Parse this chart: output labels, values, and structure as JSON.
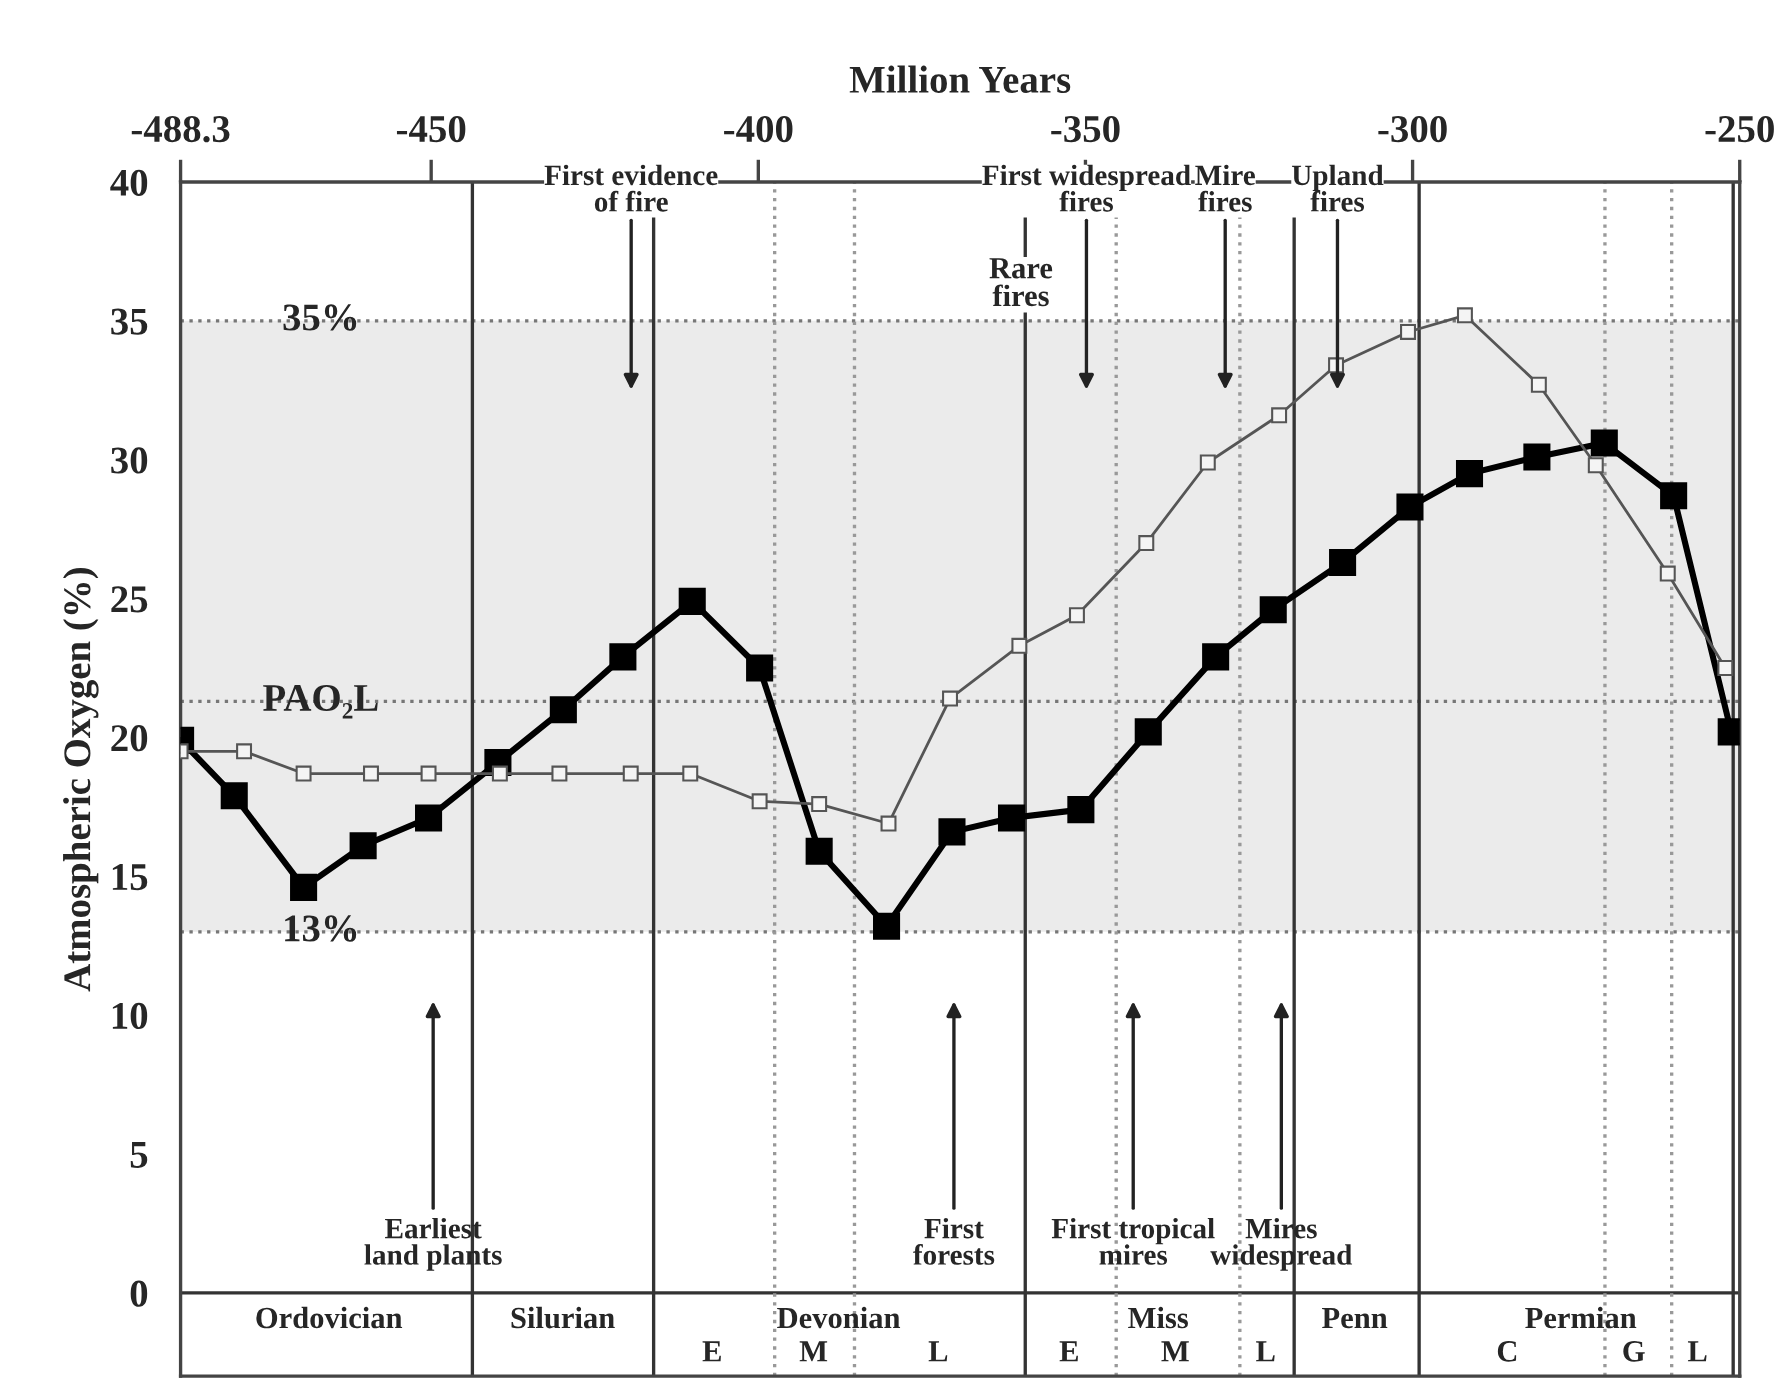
{
  "chart_data": {
    "type": "line",
    "xlabel": "Million Years",
    "ylabel": "Atmospheric Oxygen (%)",
    "xlim": [
      -488.3,
      -250
    ],
    "xticks": [
      -488.3,
      -450,
      -400,
      -350,
      -300,
      -250
    ],
    "ylim": [
      -3,
      40
    ],
    "yticks": [
      0,
      5,
      10,
      15,
      20,
      25,
      30,
      35,
      40
    ],
    "grid": false,
    "legend": false,
    "marker": "square",
    "line_style": "solid",
    "series": [
      {
        "color": "#000000",
        "x": [
          -488.3,
          -480.1,
          -469.5,
          -460.4,
          -450.4,
          -439.8,
          -429.8,
          -420.7,
          -410.1,
          -399.8,
          -390.7,
          -380.4,
          -370.4,
          -361.3,
          -350.7,
          -340.4,
          -330.1,
          -321.3,
          -310.7,
          -300.4,
          -291.3,
          -281.0,
          -270.7,
          -260.1,
          -251.3
        ],
        "values": [
          19.9,
          17.9,
          14.6,
          16.1,
          17.1,
          19.1,
          21.0,
          22.9,
          24.9,
          22.5,
          15.9,
          13.2,
          16.6,
          17.1,
          17.4,
          20.2,
          22.9,
          24.6,
          26.3,
          28.3,
          29.5,
          30.1,
          30.6,
          28.7,
          20.2
        ]
      },
      {
        "color": "#555555",
        "x": [
          -488.3,
          -478.6,
          -469.5,
          -459.2,
          -450.4,
          -439.5,
          -430.4,
          -419.5,
          -410.4,
          -399.8,
          -390.7,
          -380.1,
          -370.7,
          -360.1,
          -351.3,
          -340.7,
          -331.3,
          -320.4,
          -311.7,
          -300.7,
          -292.0,
          -280.7,
          -272.0,
          -261.0,
          -252.2
        ],
        "values": [
          19.5,
          19.5,
          18.7,
          18.7,
          18.7,
          18.7,
          18.7,
          18.7,
          18.7,
          17.7,
          17.6,
          16.9,
          21.4,
          23.3,
          24.4,
          27.0,
          29.9,
          31.6,
          33.4,
          34.6,
          35.2,
          32.7,
          29.8,
          25.9,
          22.5
        ]
      }
    ],
    "bands": [
      {
        "axis": "y",
        "from": 13,
        "to": 35,
        "color": "#ebebeb"
      }
    ],
    "ref_lines": [
      {
        "axis": "y",
        "value": 35,
        "label": "35%",
        "color": "#777777",
        "line_style": "dotted"
      },
      {
        "axis": "y",
        "value": 21.3,
        "label": "PAO₂L",
        "color": "#777777",
        "line_style": "dotted"
      },
      {
        "axis": "y",
        "value": 13,
        "label": "13%",
        "color": "#777777",
        "line_style": "dotted"
      },
      {
        "axis": "y",
        "value": 0,
        "color": "#333333",
        "line_style": "solid"
      },
      {
        "axis": "x",
        "value": -443.7,
        "color": "#333333",
        "line_style": "solid"
      },
      {
        "axis": "x",
        "value": -416.0,
        "color": "#333333",
        "line_style": "solid"
      },
      {
        "axis": "x",
        "value": -397.5,
        "color": "#999999",
        "line_style": "dotted"
      },
      {
        "axis": "x",
        "value": -385.3,
        "color": "#999999",
        "line_style": "dotted"
      },
      {
        "axis": "x",
        "value": -359.2,
        "color": "#333333",
        "line_style": "solid"
      },
      {
        "axis": "x",
        "value": -345.3,
        "color": "#999999",
        "line_style": "dotted"
      },
      {
        "axis": "x",
        "value": -326.4,
        "color": "#999999",
        "line_style": "dotted"
      },
      {
        "axis": "x",
        "value": -318.1,
        "color": "#333333",
        "line_style": "solid"
      },
      {
        "axis": "x",
        "value": -299.0,
        "color": "#333333",
        "line_style": "solid"
      },
      {
        "axis": "x",
        "value": -270.6,
        "color": "#999999",
        "line_style": "dotted"
      },
      {
        "axis": "x",
        "value": -260.4,
        "color": "#999999",
        "line_style": "dotted"
      },
      {
        "axis": "x",
        "value": -251.0,
        "color": "#333333",
        "line_style": "solid"
      }
    ],
    "annotations": [
      "First evidence\nof fire",
      "First widespread\nfires",
      "Rare\nfires",
      "Mire\nfires",
      "Upland\nfires",
      "Earliest\nland plants",
      "First\nforests",
      "First tropical\nmires",
      "Mires\nwidespread",
      "Ordovician",
      "Silurian",
      "Devonian",
      "E",
      "M",
      "L",
      "Miss",
      "E",
      "M",
      "L",
      "Penn",
      "Permian",
      "C",
      "G",
      "L"
    ]
  }
}
